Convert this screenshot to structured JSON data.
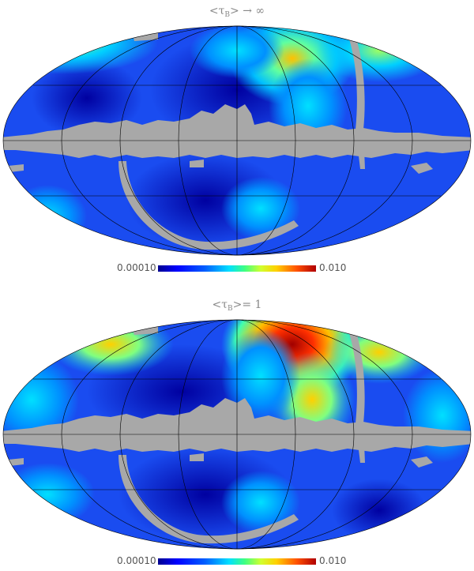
{
  "panels": [
    {
      "title_left": "<τ",
      "title_sub": "B",
      "title_right": "> → ∞",
      "colorbar": {
        "min_label": "0.00010",
        "max_label": "0.010"
      }
    },
    {
      "title_left": "<τ",
      "title_sub": "B",
      "title_right": ">= 1",
      "colorbar": {
        "min_label": "0.00010",
        "max_label": "0.010"
      }
    }
  ],
  "colors": {
    "mask": "#a8a8a8",
    "low": "#0000c8",
    "base": "#1a4cf0",
    "high": "#b00000",
    "grid": "#000000"
  }
}
